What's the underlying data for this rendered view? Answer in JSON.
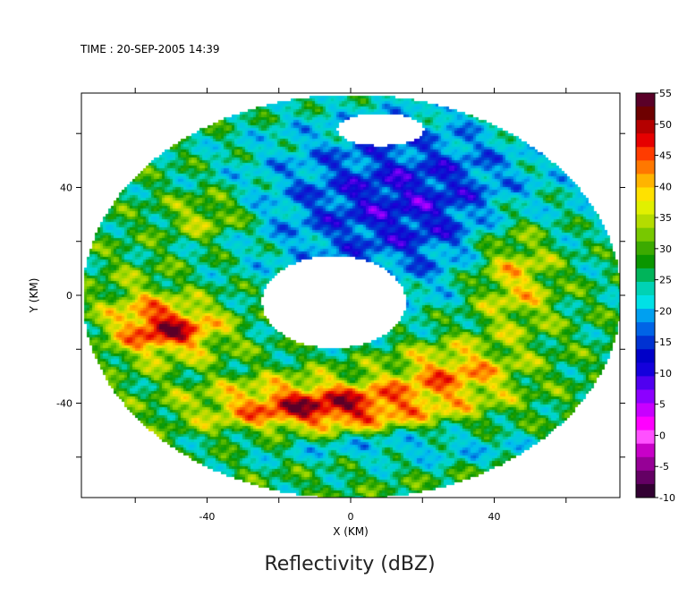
{
  "chart_data": {
    "type": "heatmap",
    "title": "Reflectivity (dBZ)",
    "subtitle": "TIME : 20-SEP-2005 14:39",
    "xlabel": "X (KM)",
    "ylabel": "Y (KM)",
    "xlim": [
      -75,
      75
    ],
    "ylim": [
      -75,
      75
    ],
    "x_ticks": [
      -40,
      0,
      40
    ],
    "y_ticks": [
      -40,
      0,
      40
    ],
    "colorbar": {
      "label": "",
      "min": -10,
      "max": 55,
      "step": 5,
      "tick_labels": [
        "55",
        "50",
        "45",
        "40",
        "35",
        "30",
        "25",
        "20",
        "15",
        "10",
        "5",
        "0",
        "-5",
        "-10"
      ],
      "colors": [
        "#5a0028",
        "#6e0000",
        "#b40000",
        "#e60000",
        "#ff3c00",
        "#ff7800",
        "#ffb400",
        "#ffe100",
        "#e1f000",
        "#b4dc00",
        "#78c800",
        "#3caa00",
        "#0a9600",
        "#00b45a",
        "#00d2b4",
        "#00e1e6",
        "#00a0f0",
        "#0064e6",
        "#0032d2",
        "#0000c8",
        "#1400dc",
        "#5000f0",
        "#8c00ff",
        "#c800ff",
        "#ff00ff",
        "#ff50ff",
        "#c800c8",
        "#960096",
        "#640064",
        "#320032"
      ]
    },
    "fields": {
      "radar_range_km": 75,
      "no_echo_region_center": [
        -5,
        -2
      ],
      "eyewall_max_dbz": 52,
      "eyewall_max_location": [
        -10,
        -40
      ],
      "outer_band_dbz": 30,
      "northeast_weak_dbz": 12
    }
  }
}
